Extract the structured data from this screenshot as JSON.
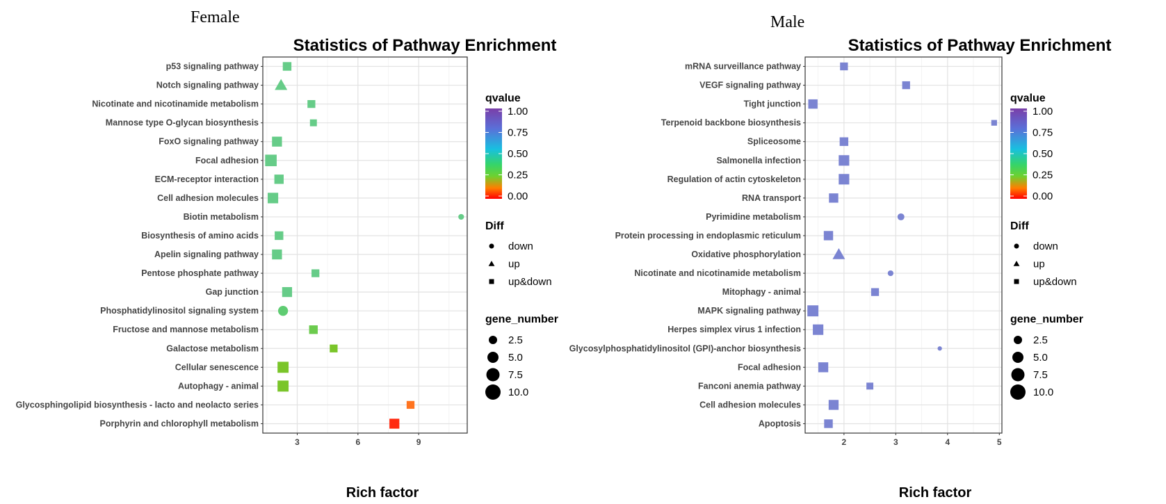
{
  "chart_data": [
    {
      "type": "scatter",
      "panel_label": "Female",
      "title": "Statistics of Pathway Enrichment",
      "xlabel": "Rich factor",
      "ylabel": "",
      "xlim": [
        1.3,
        11.4
      ],
      "xticks": [
        3,
        6,
        9
      ],
      "grid": true,
      "legend_position": "right",
      "categories": [
        "p53 signaling pathway",
        "Notch signaling pathway",
        "Nicotinate and nicotinamide metabolism",
        "Mannose type O-glycan biosynthesis",
        "FoxO signaling pathway",
        "Focal adhesion",
        "ECM-receptor interaction",
        "Cell adhesion molecules",
        "Biotin metabolism",
        "Biosynthesis of amino acids",
        "Apelin signaling pathway",
        "Pentose phosphate pathway",
        "Gap junction",
        "Phosphatidylinositol signaling system",
        "Fructose and mannose metabolism",
        "Galactose metabolism",
        "Cellular senescence",
        "Autophagy - animal",
        "Glycosphingolipid biosynthesis - lacto and neolacto series",
        "Porphyrin and chlorophyll metabolism"
      ],
      "points": [
        {
          "rich_factor": 2.5,
          "qvalue": 0.45,
          "diff": "up&down",
          "gene_number": 4
        },
        {
          "rich_factor": 2.2,
          "qvalue": 0.45,
          "diff": "up",
          "gene_number": 6
        },
        {
          "rich_factor": 3.7,
          "qvalue": 0.45,
          "diff": "up&down",
          "gene_number": 3
        },
        {
          "rich_factor": 3.8,
          "qvalue": 0.45,
          "diff": "up&down",
          "gene_number": 2
        },
        {
          "rich_factor": 2.0,
          "qvalue": 0.45,
          "diff": "up&down",
          "gene_number": 6
        },
        {
          "rich_factor": 1.7,
          "qvalue": 0.45,
          "diff": "up&down",
          "gene_number": 9
        },
        {
          "rich_factor": 2.1,
          "qvalue": 0.45,
          "diff": "up&down",
          "gene_number": 5
        },
        {
          "rich_factor": 1.8,
          "qvalue": 0.45,
          "diff": "up&down",
          "gene_number": 7
        },
        {
          "rich_factor": 11.1,
          "qvalue": 0.45,
          "diff": "down",
          "gene_number": 1
        },
        {
          "rich_factor": 2.1,
          "qvalue": 0.45,
          "diff": "up&down",
          "gene_number": 4
        },
        {
          "rich_factor": 2.0,
          "qvalue": 0.45,
          "diff": "up&down",
          "gene_number": 6
        },
        {
          "rich_factor": 3.9,
          "qvalue": 0.45,
          "diff": "up&down",
          "gene_number": 3
        },
        {
          "rich_factor": 2.5,
          "qvalue": 0.45,
          "diff": "up&down",
          "gene_number": 6
        },
        {
          "rich_factor": 2.3,
          "qvalue": 0.42,
          "diff": "down",
          "gene_number": 6
        },
        {
          "rich_factor": 3.8,
          "qvalue": 0.35,
          "diff": "up&down",
          "gene_number": 4
        },
        {
          "rich_factor": 4.8,
          "qvalue": 0.3,
          "diff": "up&down",
          "gene_number": 3
        },
        {
          "rich_factor": 2.3,
          "qvalue": 0.3,
          "diff": "up&down",
          "gene_number": 8
        },
        {
          "rich_factor": 2.3,
          "qvalue": 0.3,
          "diff": "up&down",
          "gene_number": 8
        },
        {
          "rich_factor": 8.6,
          "qvalue": 0.08,
          "diff": "up&down",
          "gene_number": 3
        },
        {
          "rich_factor": 7.8,
          "qvalue": 0.03,
          "diff": "up&down",
          "gene_number": 6
        }
      ],
      "legend_qvalue": {
        "title": "qvalue",
        "ticks": [
          "1.00",
          "0.75",
          "0.50",
          "0.25",
          "0.00"
        ]
      },
      "legend_diff": {
        "title": "Diff",
        "entries": [
          "down",
          "up",
          "up&down"
        ]
      },
      "legend_gene": {
        "title": "gene_number",
        "entries": [
          "2.5",
          "5.0",
          "7.5",
          "10.0"
        ]
      }
    },
    {
      "type": "scatter",
      "panel_label": "Male",
      "title": "Statistics of Pathway Enrichment",
      "xlabel": "Rich factor",
      "ylabel": "",
      "xlim": [
        1.25,
        5.05
      ],
      "xticks": [
        2,
        3,
        4,
        5
      ],
      "grid": true,
      "legend_position": "right",
      "categories": [
        "mRNA surveillance pathway",
        "VEGF signaling pathway",
        "Tight junction",
        "Terpenoid backbone biosynthesis",
        "Spliceosome",
        "Salmonella infection",
        "Regulation of actin cytoskeleton",
        "RNA transport",
        "Pyrimidine metabolism",
        "Protein processing in endoplasmic reticulum",
        "Oxidative phosphorylation",
        "Nicotinate and nicotinamide metabolism",
        "Mitophagy - animal",
        "MAPK signaling pathway",
        "Herpes simplex virus 1 infection",
        "Glycosylphosphatidylinositol (GPI)-anchor biosynthesis",
        "Focal adhesion",
        "Fanconi anemia pathway",
        "Cell adhesion molecules",
        "Apoptosis"
      ],
      "points": [
        {
          "rich_factor": 2.0,
          "qvalue": 0.85,
          "diff": "up&down",
          "gene_number": 3
        },
        {
          "rich_factor": 3.2,
          "qvalue": 0.85,
          "diff": "up&down",
          "gene_number": 3
        },
        {
          "rich_factor": 1.4,
          "qvalue": 0.85,
          "diff": "up&down",
          "gene_number": 5
        },
        {
          "rich_factor": 4.9,
          "qvalue": 0.85,
          "diff": "up&down",
          "gene_number": 1
        },
        {
          "rich_factor": 2.0,
          "qvalue": 0.85,
          "diff": "up&down",
          "gene_number": 4
        },
        {
          "rich_factor": 2.0,
          "qvalue": 0.85,
          "diff": "up&down",
          "gene_number": 7
        },
        {
          "rich_factor": 2.0,
          "qvalue": 0.85,
          "diff": "up&down",
          "gene_number": 7
        },
        {
          "rich_factor": 1.8,
          "qvalue": 0.85,
          "diff": "up&down",
          "gene_number": 5
        },
        {
          "rich_factor": 3.1,
          "qvalue": 0.85,
          "diff": "down",
          "gene_number": 2
        },
        {
          "rich_factor": 1.7,
          "qvalue": 0.85,
          "diff": "up&down",
          "gene_number": 5
        },
        {
          "rich_factor": 1.9,
          "qvalue": 0.85,
          "diff": "up",
          "gene_number": 6
        },
        {
          "rich_factor": 2.9,
          "qvalue": 0.85,
          "diff": "down",
          "gene_number": 1
        },
        {
          "rich_factor": 2.6,
          "qvalue": 0.85,
          "diff": "up&down",
          "gene_number": 3
        },
        {
          "rich_factor": 1.4,
          "qvalue": 0.85,
          "diff": "up&down",
          "gene_number": 8
        },
        {
          "rich_factor": 1.5,
          "qvalue": 0.85,
          "diff": "up&down",
          "gene_number": 7
        },
        {
          "rich_factor": 3.85,
          "qvalue": 0.85,
          "diff": "down",
          "gene_number": 0.3
        },
        {
          "rich_factor": 1.6,
          "qvalue": 0.85,
          "diff": "up&down",
          "gene_number": 6
        },
        {
          "rich_factor": 2.5,
          "qvalue": 0.85,
          "diff": "up&down",
          "gene_number": 2
        },
        {
          "rich_factor": 1.8,
          "qvalue": 0.85,
          "diff": "up&down",
          "gene_number": 6
        },
        {
          "rich_factor": 1.7,
          "qvalue": 0.85,
          "diff": "up&down",
          "gene_number": 4
        }
      ],
      "legend_qvalue": {
        "title": "qvalue",
        "ticks": [
          "1.00",
          "0.75",
          "0.50",
          "0.25",
          "0.00"
        ]
      },
      "legend_diff": {
        "title": "Diff",
        "entries": [
          "down",
          "up",
          "up&down"
        ]
      },
      "legend_gene": {
        "title": "gene_number",
        "entries": [
          "2.5",
          "5.0",
          "7.5",
          "10.0"
        ]
      }
    }
  ]
}
